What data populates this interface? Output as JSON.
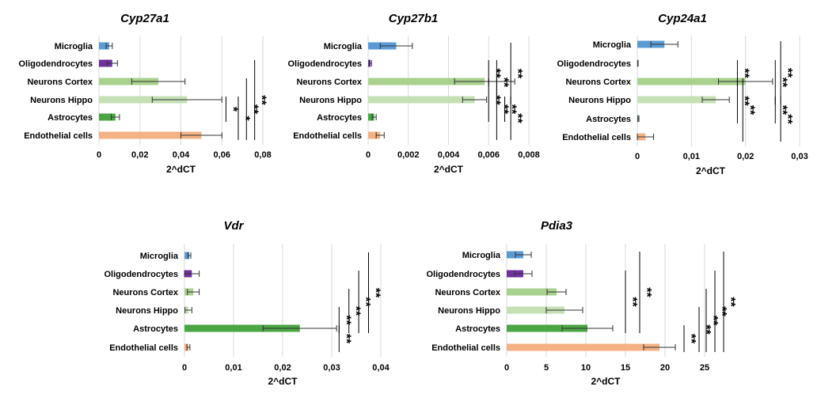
{
  "colors": {
    "microglia": "#5b9bd5",
    "oligodendrocytes": "#7030a0",
    "neurons_cortex": "#a9d18e",
    "neurons_hippo": "#c5e0b4",
    "astrocytes": "#4aa543",
    "endothelial": "#f4b183",
    "grid": "#d9d9d9",
    "axis": "#000000"
  },
  "chart_data": [
    {
      "type": "bar",
      "orientation": "horizontal",
      "title": "Cyp27a1",
      "xlabel": "2^dCT",
      "categories": [
        "Microglia",
        "Oligodendrocytes",
        "Neurons Cortex",
        "Neurons Hippo",
        "Astrocytes",
        "Endothelial cells"
      ],
      "values": [
        0.005,
        0.0065,
        0.029,
        0.043,
        0.008,
        0.05
      ],
      "errors": [
        0.0015,
        0.0025,
        0.013,
        0.017,
        0.002,
        0.01
      ],
      "xlim": [
        0,
        0.08
      ],
      "ticks": [
        0,
        0.02,
        0.04,
        0.06,
        0.08
      ],
      "tick_labels": [
        "0",
        "0,02",
        "0,04",
        "0,06",
        "0,08"
      ],
      "significance": [
        {
          "from": 3,
          "to": 4,
          "x": 0.062,
          "label": "*"
        },
        {
          "from": 3,
          "to": 5,
          "x": 0.068,
          "label": "*"
        },
        {
          "from": 2,
          "to": 5,
          "x": 0.072,
          "label": "**"
        },
        {
          "from": 1,
          "to": 5,
          "x": 0.076,
          "label": "**"
        }
      ]
    },
    {
      "type": "bar",
      "orientation": "horizontal",
      "title": "Cyp27b1",
      "xlabel": "2^dCT",
      "categories": [
        "Microglia",
        "Oligodendrocytes",
        "Neurons Cortex",
        "Neurons Hippo",
        "Astrocytes",
        "Endothelial cells"
      ],
      "values": [
        0.0014,
        0.00012,
        0.0058,
        0.0053,
        0.0003,
        0.0006
      ],
      "errors": [
        0.0008,
        5e-05,
        0.0015,
        0.0006,
        0.0001,
        0.0002
      ],
      "xlim": [
        0,
        0.008
      ],
      "ticks": [
        0,
        0.002,
        0.004,
        0.006,
        0.008
      ],
      "tick_labels": [
        "0",
        "0,002",
        "0,004",
        "0,006",
        "0,008"
      ],
      "significance": [
        {
          "from": 1,
          "to": 2,
          "x": 0.006,
          "label": "**"
        },
        {
          "from": 1,
          "to": 3,
          "x": 0.0064,
          "label": "**"
        },
        {
          "from": 0,
          "to": 3,
          "x": 0.0071,
          "label": "**"
        },
        {
          "from": 2,
          "to": 4,
          "x": 0.006,
          "label": "**"
        },
        {
          "from": 2,
          "to": 5,
          "x": 0.0064,
          "label": "**"
        },
        {
          "from": 3,
          "to": 4,
          "x": 0.0068,
          "label": "**"
        },
        {
          "from": 3,
          "to": 5,
          "x": 0.0071,
          "label": "**"
        }
      ]
    },
    {
      "type": "bar",
      "orientation": "horizontal",
      "title": "Cyp24a1",
      "xlabel": "2^dCT",
      "categories": [
        "Microglia",
        "Oligodendrocytes",
        "Neurons Cortex",
        "Neurons Hippo",
        "Astrocytes",
        "Endothelial cells"
      ],
      "values": [
        0.005,
        0.0001,
        0.02,
        0.0145,
        0.0002,
        0.0015
      ],
      "errors": [
        0.0025,
        5e-05,
        0.005,
        0.0025,
        0.0001,
        0.0015
      ],
      "xlim": [
        0,
        0.03
      ],
      "ticks": [
        0,
        0.01,
        0.02,
        0.03
      ],
      "tick_labels": [
        "0",
        "0,01",
        "0,02",
        "0,03"
      ],
      "significance": [
        {
          "from": 1,
          "to": 2,
          "x": 0.0185,
          "label": "**"
        },
        {
          "from": 0,
          "to": 3,
          "x": 0.0265,
          "label": "**"
        },
        {
          "from": 1,
          "to": 3,
          "x": 0.0255,
          "label": "**"
        },
        {
          "from": 2,
          "to": 4,
          "x": 0.0185,
          "label": "**"
        },
        {
          "from": 2,
          "to": 5,
          "x": 0.0195,
          "label": "**"
        },
        {
          "from": 3,
          "to": 5,
          "x": 0.0265,
          "label": "**"
        },
        {
          "from": 3,
          "to": 4,
          "x": 0.0255,
          "label": "**"
        }
      ]
    },
    {
      "type": "bar",
      "orientation": "horizontal",
      "title": "Vdr",
      "xlabel": "2^dCT",
      "categories": [
        "Microglia",
        "Oligodendrocytes",
        "Neurons Cortex",
        "Neurons Hippo",
        "Astrocytes",
        "Endothelial cells"
      ],
      "values": [
        0.001,
        0.0015,
        0.0018,
        0.0008,
        0.0235,
        0.0008
      ],
      "errors": [
        0.0003,
        0.0015,
        0.0012,
        0.0007,
        0.0075,
        0.0003
      ],
      "xlim": [
        0,
        0.04
      ],
      "ticks": [
        0,
        0.01,
        0.02,
        0.03,
        0.04
      ],
      "tick_labels": [
        "0",
        "0,01",
        "0,02",
        "0,03",
        "0,04"
      ],
      "significance": [
        {
          "from": 3,
          "to": 4,
          "x": 0.0315,
          "label": "**"
        },
        {
          "from": 2,
          "to": 4,
          "x": 0.0335,
          "label": "**"
        },
        {
          "from": 1,
          "to": 4,
          "x": 0.0355,
          "label": "**"
        },
        {
          "from": 0,
          "to": 4,
          "x": 0.0375,
          "label": "**"
        },
        {
          "from": 4,
          "to": 5,
          "x": 0.0315,
          "label": "**"
        }
      ]
    },
    {
      "type": "bar",
      "orientation": "horizontal",
      "title": "Pdia3",
      "xlabel": "2^dCT",
      "categories": [
        "Microglia",
        "Oligodendrocytes",
        "Neurons Cortex",
        "Neurons Hippo",
        "Astrocytes",
        "Endothelial cells"
      ],
      "values": [
        2.1,
        2.1,
        6.3,
        7.3,
        10.2,
        19.3
      ],
      "errors": [
        1.0,
        1.1,
        1.2,
        2.3,
        3.2,
        2.0
      ],
      "xlim": [
        0,
        25
      ],
      "ticks": [
        0,
        5,
        10,
        15,
        20,
        25
      ],
      "tick_labels": [
        "0",
        "5",
        "10",
        "15",
        "20",
        "25"
      ],
      "significance": [
        {
          "from": 1,
          "to": 4,
          "x": 15,
          "label": "**"
        },
        {
          "from": 0,
          "to": 4,
          "x": 16.8,
          "label": "**"
        },
        {
          "from": 4,
          "to": 5,
          "x": 22.4,
          "label": "**"
        },
        {
          "from": 3,
          "to": 5,
          "x": 24.3,
          "label": "**"
        },
        {
          "from": 2,
          "to": 5,
          "x": 25.2,
          "label": "**"
        },
        {
          "from": 1,
          "to": 5,
          "x": 26.3,
          "label": "**"
        },
        {
          "from": 0,
          "to": 5,
          "x": 27.4,
          "label": "**"
        }
      ]
    }
  ]
}
